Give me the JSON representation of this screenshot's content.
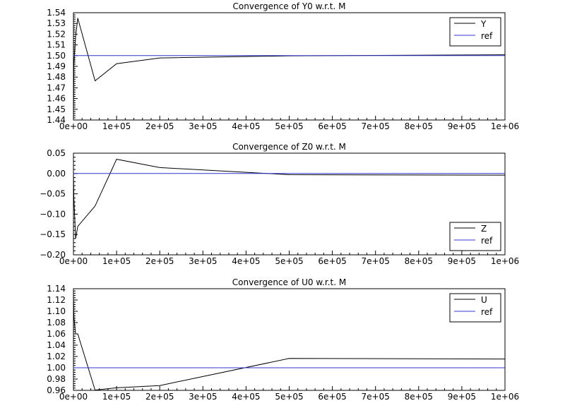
{
  "colors": {
    "estimate": "#000000",
    "reference": "#3333cc",
    "axis": "#000000",
    "background": "#ffffff"
  },
  "chart_data": [
    {
      "type": "line",
      "title": "Convergence of Y0 w.r.t. M",
      "xlim": [
        0,
        1000000
      ],
      "ylim": [
        1.44,
        1.54
      ],
      "x_ticks": [
        "0e+00",
        "1e+05",
        "2e+05",
        "3e+05",
        "4e+05",
        "5e+05",
        "6e+05",
        "7e+05",
        "8e+05",
        "9e+05",
        "1e+06"
      ],
      "y_ticks": [
        "1.44",
        "1.45",
        "1.46",
        "1.47",
        "1.48",
        "1.49",
        "1.50",
        "1.51",
        "1.52",
        "1.53",
        "1.54"
      ],
      "y_tick_values": [
        1.44,
        1.45,
        1.46,
        1.47,
        1.48,
        1.49,
        1.5,
        1.51,
        1.52,
        1.53,
        1.54
      ],
      "legend_position": "top-right",
      "series": [
        {
          "name": "Y",
          "color": "#000000",
          "x": [
            0,
            1000,
            5000,
            10000,
            50000,
            100000,
            200000,
            500000,
            1000000
          ],
          "y": [
            1.44,
            1.492,
            1.518,
            1.535,
            1.4765,
            1.4925,
            1.4978,
            1.4998,
            1.5008
          ]
        },
        {
          "name": "ref",
          "color": "#3333cc",
          "x": [
            0,
            1000000
          ],
          "y": [
            1.5,
            1.5
          ]
        }
      ]
    },
    {
      "type": "line",
      "title": "Convergence of Z0 w.r.t. M",
      "xlim": [
        0,
        1000000
      ],
      "ylim": [
        -0.2,
        0.05
      ],
      "x_ticks": [
        "0e+00",
        "1e+05",
        "2e+05",
        "3e+05",
        "4e+05",
        "5e+05",
        "6e+05",
        "7e+05",
        "8e+05",
        "9e+05",
        "1e+06"
      ],
      "y_ticks": [
        "−0.20",
        "−0.15",
        "−0.10",
        "−0.05",
        "0.00",
        "0.05"
      ],
      "y_tick_values": [
        -0.2,
        -0.15,
        -0.1,
        -0.05,
        0.0,
        0.05
      ],
      "legend_position": "bottom-right",
      "series": [
        {
          "name": "Z",
          "color": "#000000",
          "x": [
            0,
            1000,
            5000,
            10000,
            50000,
            100000,
            200000,
            500000,
            1000000
          ],
          "y": [
            0.0,
            -0.06,
            -0.16,
            -0.13,
            -0.08,
            0.035,
            0.0145,
            -0.003,
            -0.004
          ]
        },
        {
          "name": "ref",
          "color": "#3333cc",
          "x": [
            0,
            1000000
          ],
          "y": [
            0.0,
            0.0
          ]
        }
      ]
    },
    {
      "type": "line",
      "title": "Convergence of U0 w.r.t. M",
      "xlim": [
        0,
        1000000
      ],
      "ylim": [
        0.96,
        1.14
      ],
      "x_ticks": [
        "0e+00",
        "1e+05",
        "2e+05",
        "3e+05",
        "4e+05",
        "5e+05",
        "6e+05",
        "7e+05",
        "8e+05",
        "9e+05",
        "1e+06"
      ],
      "y_ticks": [
        "0.96",
        "0.98",
        "1.00",
        "1.02",
        "1.04",
        "1.06",
        "1.08",
        "1.10",
        "1.12",
        "1.14"
      ],
      "y_tick_values": [
        0.96,
        0.98,
        1.0,
        1.02,
        1.04,
        1.06,
        1.08,
        1.1,
        1.12,
        1.14
      ],
      "legend_position": "top-right",
      "series": [
        {
          "name": "U",
          "color": "#000000",
          "x": [
            0,
            1000,
            5000,
            10000,
            50000,
            100000,
            200000,
            500000,
            1000000
          ],
          "y": [
            1.13,
            1.09,
            1.06,
            1.06,
            0.9605,
            0.9645,
            0.9685,
            1.0165,
            1.0155
          ]
        },
        {
          "name": "ref",
          "color": "#3333cc",
          "x": [
            0,
            1000000
          ],
          "y": [
            1.0,
            1.0
          ]
        }
      ]
    }
  ]
}
